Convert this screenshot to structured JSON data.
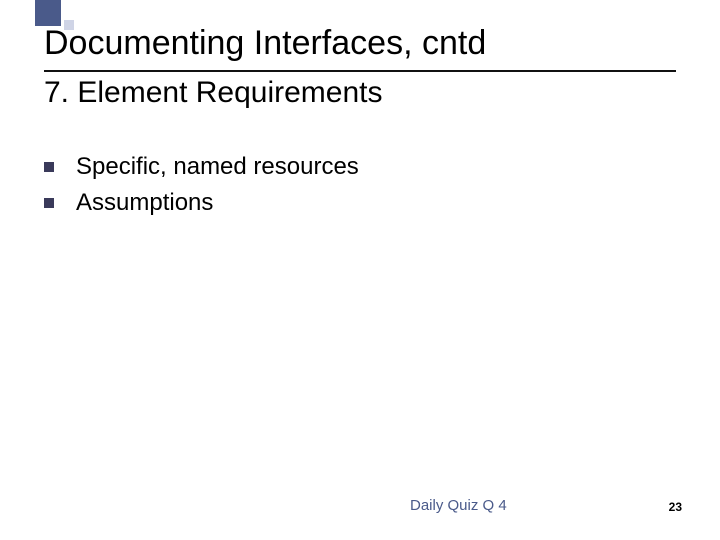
{
  "decoration": {
    "big_square_color": "#4a5a8a",
    "small_square_color": "#cfd4e6"
  },
  "title": "Documenting Interfaces, cntd",
  "subtitle": "7. Element Requirements",
  "bullets": [
    "Specific, named resources",
    "Assumptions"
  ],
  "footer_note": "Daily Quiz Q 4",
  "page_number": "23",
  "colors": {
    "text": "#000000",
    "accent": "#4a5a8a",
    "rule": "#111111",
    "background": "#ffffff"
  },
  "fonts": {
    "title_size_pt": 34,
    "subtitle_size_pt": 30,
    "bullet_size_pt": 24,
    "footer_size_pt": 15,
    "pagenum_size_pt": 12
  }
}
